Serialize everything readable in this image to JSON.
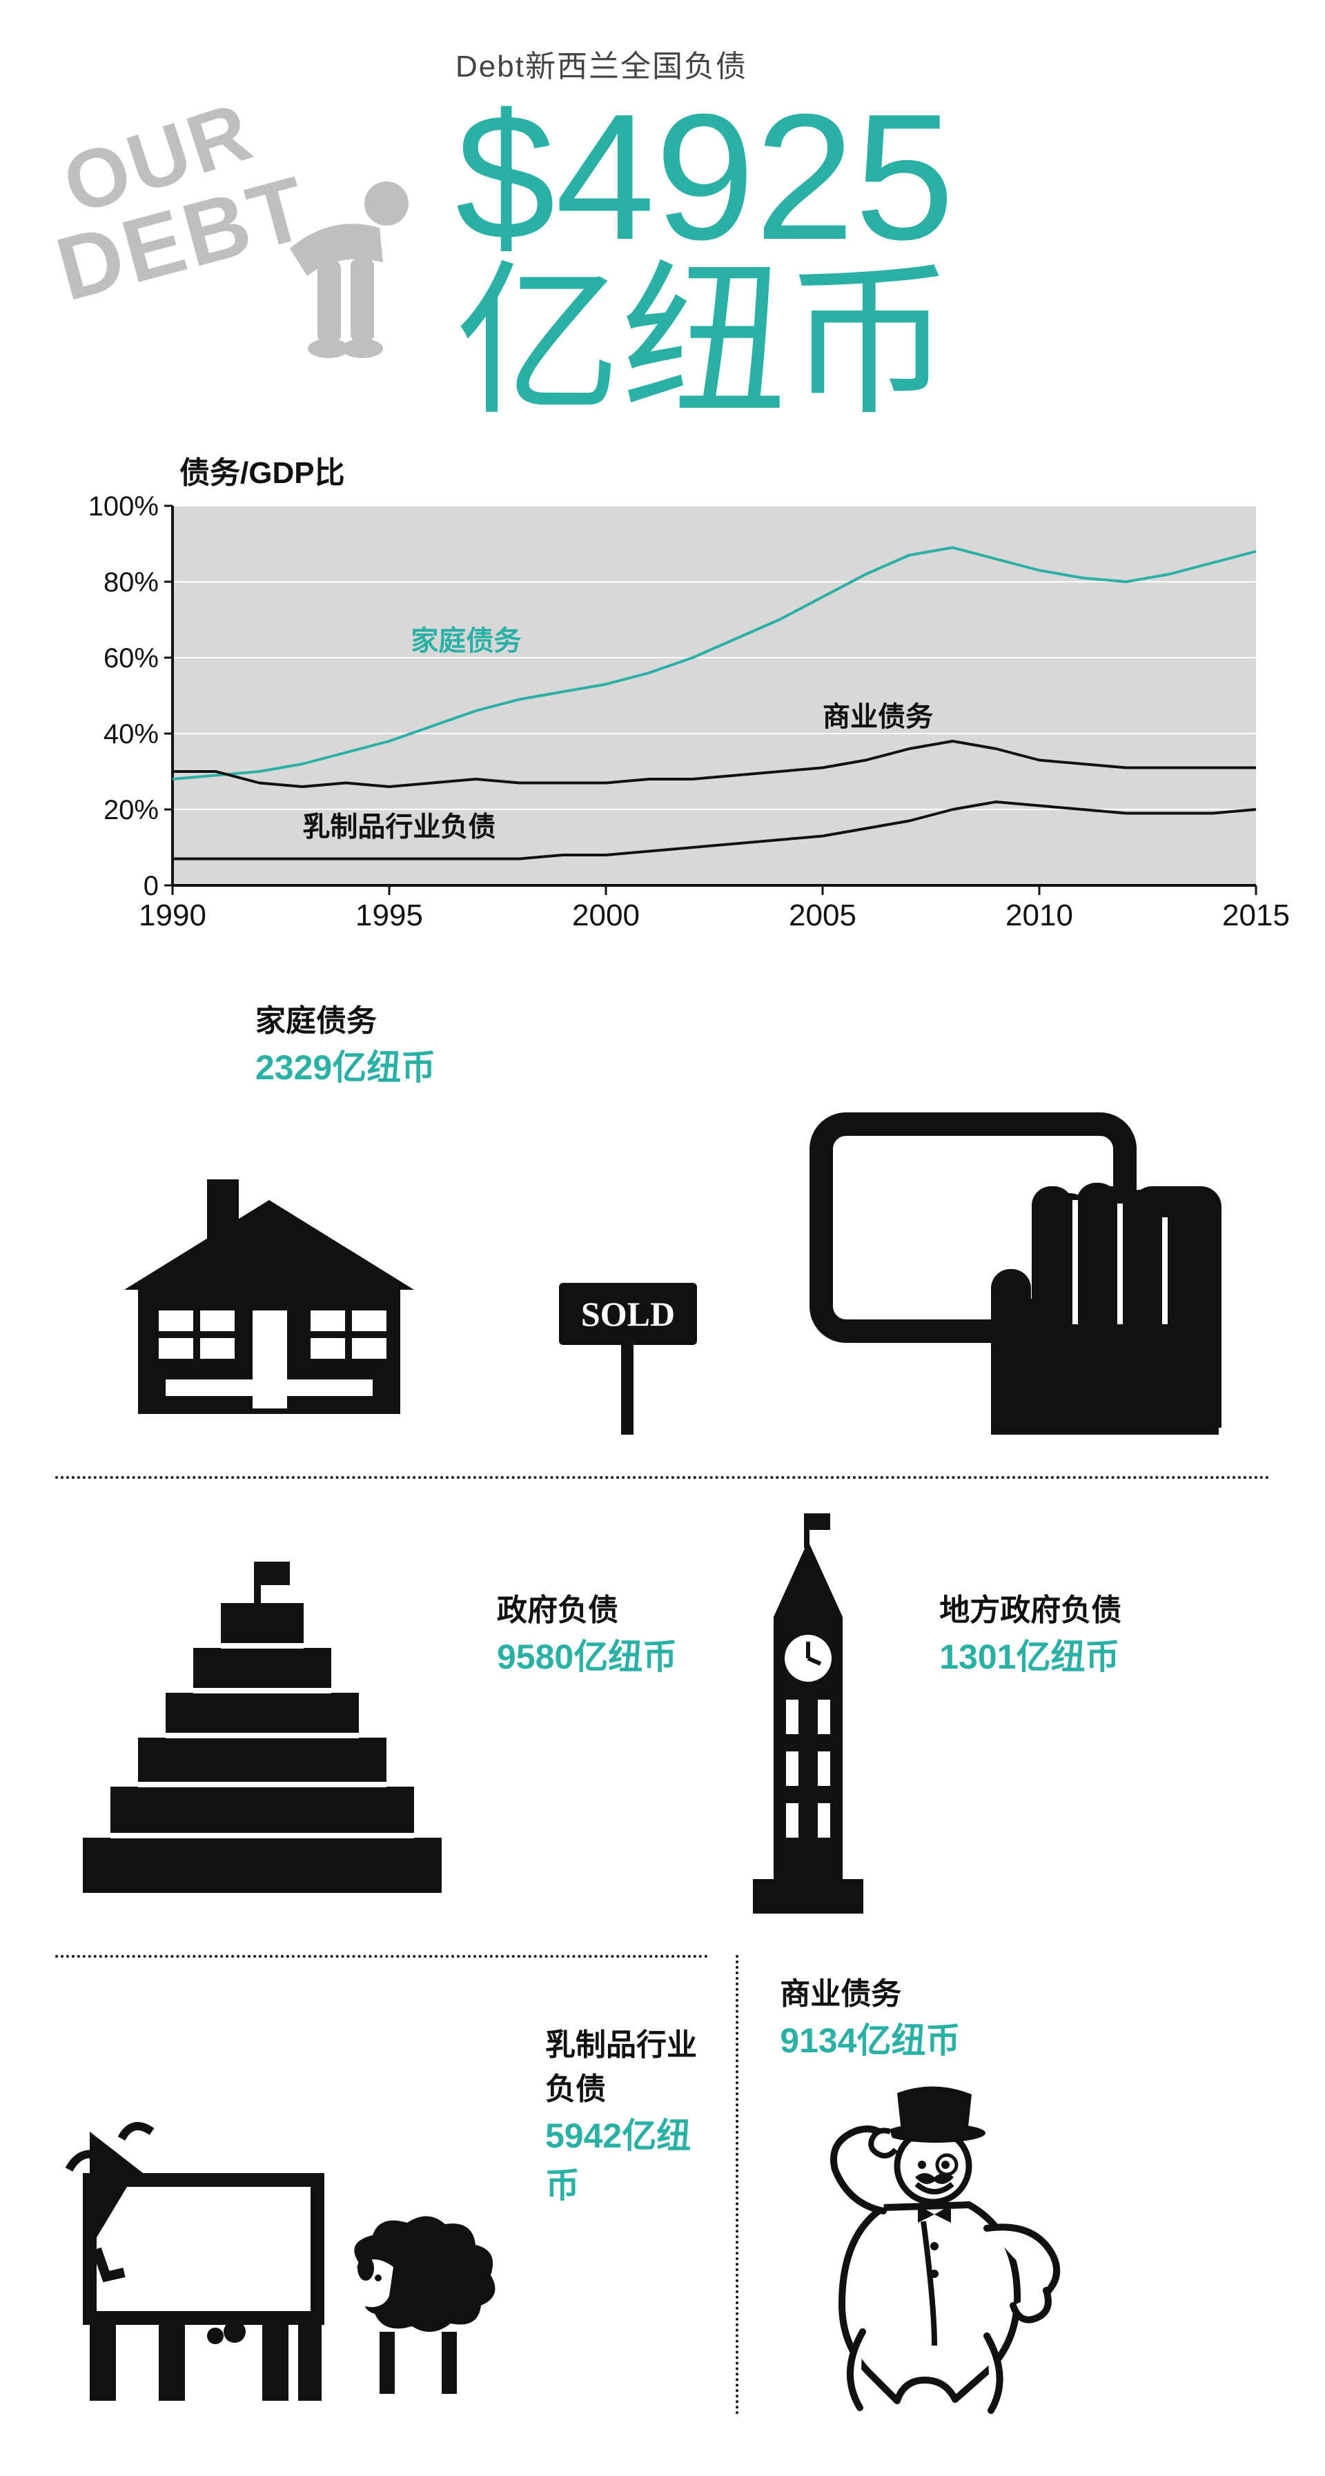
{
  "colors": {
    "teal": "#2bb0a6",
    "black": "#111111",
    "logo_gray": "#bfbfbf",
    "chart_bg": "#d8d8d8",
    "chart_grid": "#ffffff"
  },
  "hero": {
    "logo_our": "OUR",
    "logo_debt": "DEBT",
    "subtitle": "Debt新西兰全国负债",
    "big_number": "$4925",
    "big_unit": "亿纽币"
  },
  "chart": {
    "type": "line",
    "title": "债务/GDP比",
    "xlim": [
      1990,
      2015
    ],
    "ylim": [
      0,
      100
    ],
    "ytick_step": 20,
    "xticks": [
      1990,
      1995,
      2000,
      2005,
      2010,
      2015
    ],
    "yticks": [
      0,
      20,
      40,
      60,
      80,
      100
    ],
    "ytick_labels": [
      "0",
      "20%",
      "40%",
      "60%",
      "80%",
      "100%"
    ],
    "background_color": "#d8d8d8",
    "grid_color": "#ffffff",
    "axis_color": "#111111",
    "line_width": 4,
    "label_fontsize": 40,
    "series": [
      {
        "name": "家庭债务",
        "color": "#2bb0a6",
        "label_x": 1995.5,
        "label_y": 62,
        "points": [
          [
            1990,
            28
          ],
          [
            1991,
            29
          ],
          [
            1992,
            30
          ],
          [
            1993,
            32
          ],
          [
            1994,
            35
          ],
          [
            1995,
            38
          ],
          [
            1996,
            42
          ],
          [
            1997,
            46
          ],
          [
            1998,
            49
          ],
          [
            1999,
            51
          ],
          [
            2000,
            53
          ],
          [
            2001,
            56
          ],
          [
            2002,
            60
          ],
          [
            2003,
            65
          ],
          [
            2004,
            70
          ],
          [
            2005,
            76
          ],
          [
            2006,
            82
          ],
          [
            2007,
            87
          ],
          [
            2008,
            89
          ],
          [
            2009,
            86
          ],
          [
            2010,
            83
          ],
          [
            2011,
            81
          ],
          [
            2012,
            80
          ],
          [
            2013,
            82
          ],
          [
            2014,
            85
          ],
          [
            2015,
            88
          ]
        ]
      },
      {
        "name": "商业债务",
        "color": "#111111",
        "label_x": 2005,
        "label_y": 42,
        "points": [
          [
            1990,
            30
          ],
          [
            1991,
            30
          ],
          [
            1992,
            27
          ],
          [
            1993,
            26
          ],
          [
            1994,
            27
          ],
          [
            1995,
            26
          ],
          [
            1996,
            27
          ],
          [
            1997,
            28
          ],
          [
            1998,
            27
          ],
          [
            1999,
            27
          ],
          [
            2000,
            27
          ],
          [
            2001,
            28
          ],
          [
            2002,
            28
          ],
          [
            2003,
            29
          ],
          [
            2004,
            30
          ],
          [
            2005,
            31
          ],
          [
            2006,
            33
          ],
          [
            2007,
            36
          ],
          [
            2008,
            38
          ],
          [
            2009,
            36
          ],
          [
            2010,
            33
          ],
          [
            2011,
            32
          ],
          [
            2012,
            31
          ],
          [
            2013,
            31
          ],
          [
            2014,
            31
          ],
          [
            2015,
            31
          ]
        ]
      },
      {
        "name": "乳制品行业负债",
        "color": "#111111",
        "label_x": 1993,
        "label_y": 13,
        "points": [
          [
            1990,
            7
          ],
          [
            1991,
            7
          ],
          [
            1992,
            7
          ],
          [
            1993,
            7
          ],
          [
            1994,
            7
          ],
          [
            1995,
            7
          ],
          [
            1996,
            7
          ],
          [
            1997,
            7
          ],
          [
            1998,
            7
          ],
          [
            1999,
            8
          ],
          [
            2000,
            8
          ],
          [
            2001,
            9
          ],
          [
            2002,
            10
          ],
          [
            2003,
            11
          ],
          [
            2004,
            12
          ],
          [
            2005,
            13
          ],
          [
            2006,
            15
          ],
          [
            2007,
            17
          ],
          [
            2008,
            20
          ],
          [
            2009,
            22
          ],
          [
            2010,
            21
          ],
          [
            2011,
            20
          ],
          [
            2012,
            19
          ],
          [
            2013,
            19
          ],
          [
            2014,
            19
          ],
          [
            2015,
            20
          ]
        ]
      }
    ]
  },
  "stats": {
    "household": {
      "label": "家庭债务",
      "value": "2329亿纽币",
      "color": "#2bb0a6"
    },
    "sold_sign": "SOLD",
    "govt": {
      "label": "政府负债",
      "value": "9580亿纽币",
      "color": "#2bb0a6"
    },
    "local_govt": {
      "label": "地方政府负债",
      "value": "1301亿纽币",
      "color": "#2bb0a6"
    },
    "dairy": {
      "label": "乳制品行业负债",
      "value": "5942亿纽币",
      "color": "#2bb0a6"
    },
    "business": {
      "label": "商业债务",
      "value": "9134亿纽币",
      "color": "#2bb0a6"
    }
  }
}
